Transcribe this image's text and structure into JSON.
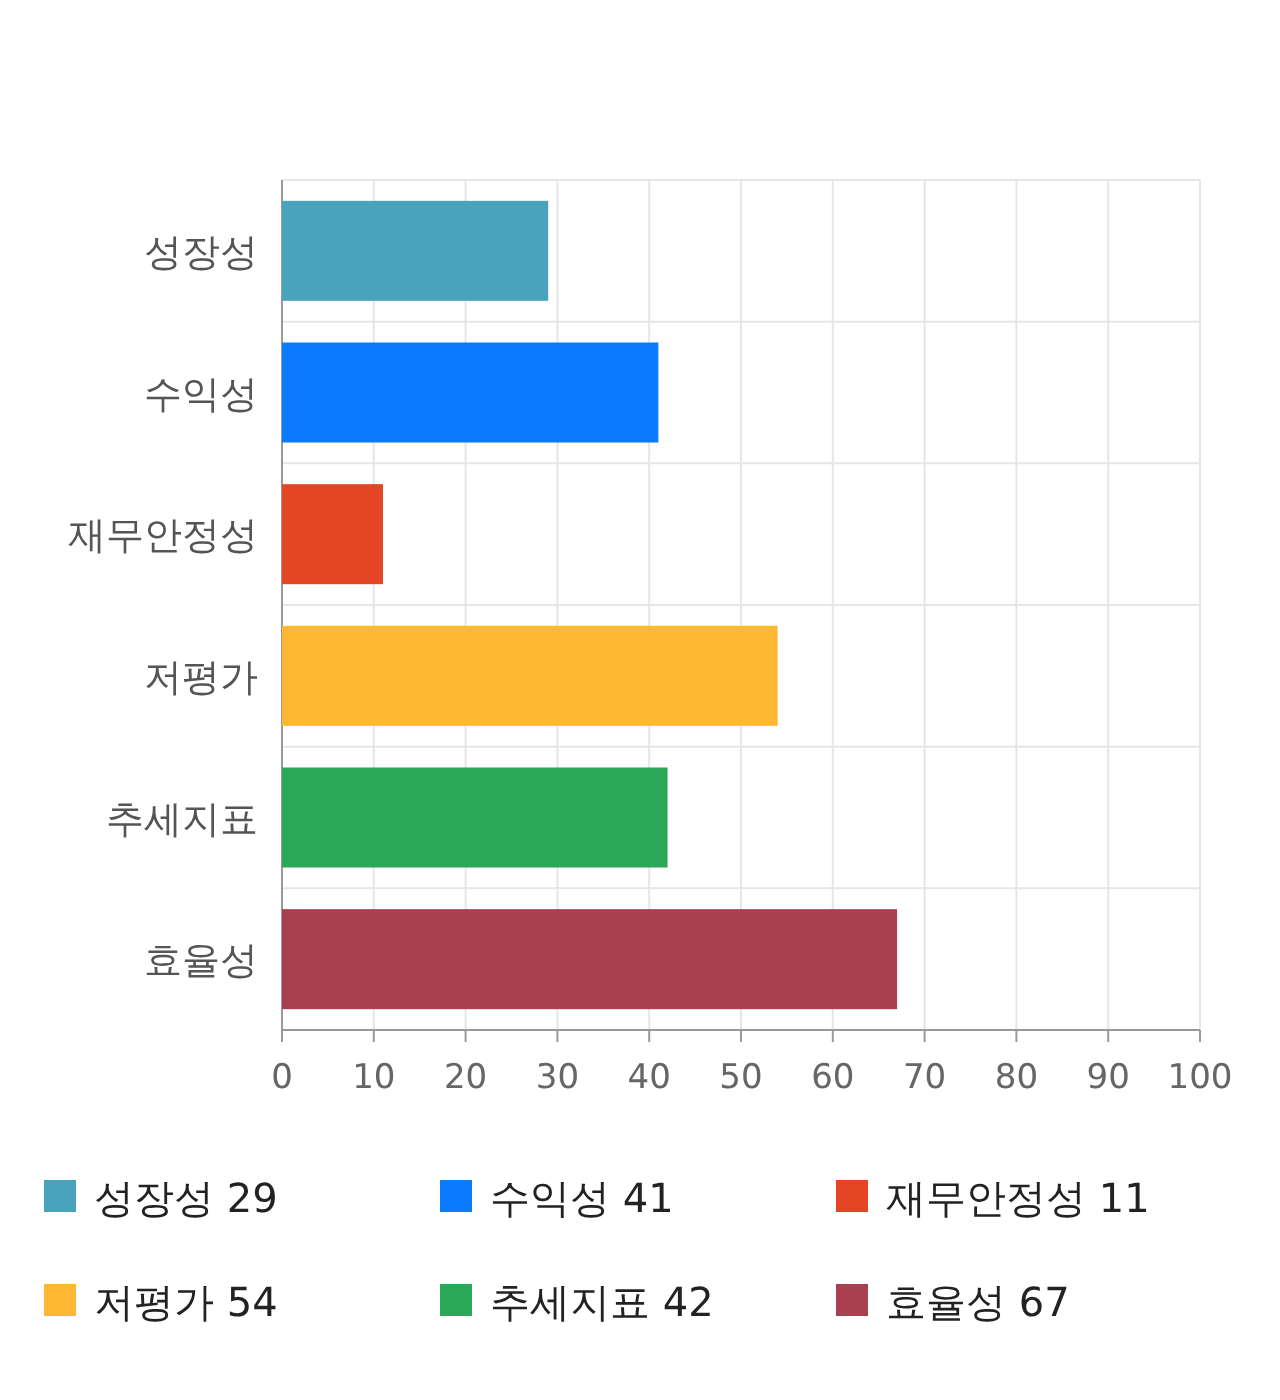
{
  "chart_data": {
    "type": "bar",
    "orientation": "horizontal",
    "categories": [
      "성장성",
      "수익성",
      "재무안정성",
      "저평가",
      "추세지표",
      "효율성"
    ],
    "series": [
      {
        "name": "성장성 29",
        "color": "#4aa3bd",
        "values": [
          29,
          null,
          null,
          null,
          null,
          null
        ]
      },
      {
        "name": "수익성 41",
        "color": "#0a7bff",
        "values": [
          null,
          41,
          null,
          null,
          null,
          null
        ]
      },
      {
        "name": "재무안정성 11",
        "color": "#e34525",
        "values": [
          null,
          null,
          11,
          null,
          null,
          null
        ]
      },
      {
        "name": "저평가 54",
        "color": "#ffb833",
        "values": [
          null,
          null,
          null,
          54,
          null,
          null
        ]
      },
      {
        "name": "추세지표 42",
        "color": "#2aa857",
        "values": [
          null,
          null,
          null,
          null,
          42,
          null
        ]
      },
      {
        "name": "효율성 67",
        "color": "#a8404f",
        "values": [
          null,
          null,
          null,
          null,
          null,
          67
        ]
      }
    ],
    "xlim": [
      0,
      100
    ],
    "xticks": [
      0,
      10,
      20,
      30,
      40,
      50,
      60,
      70,
      80,
      90,
      100
    ],
    "grid": true,
    "legend": "bottom"
  }
}
